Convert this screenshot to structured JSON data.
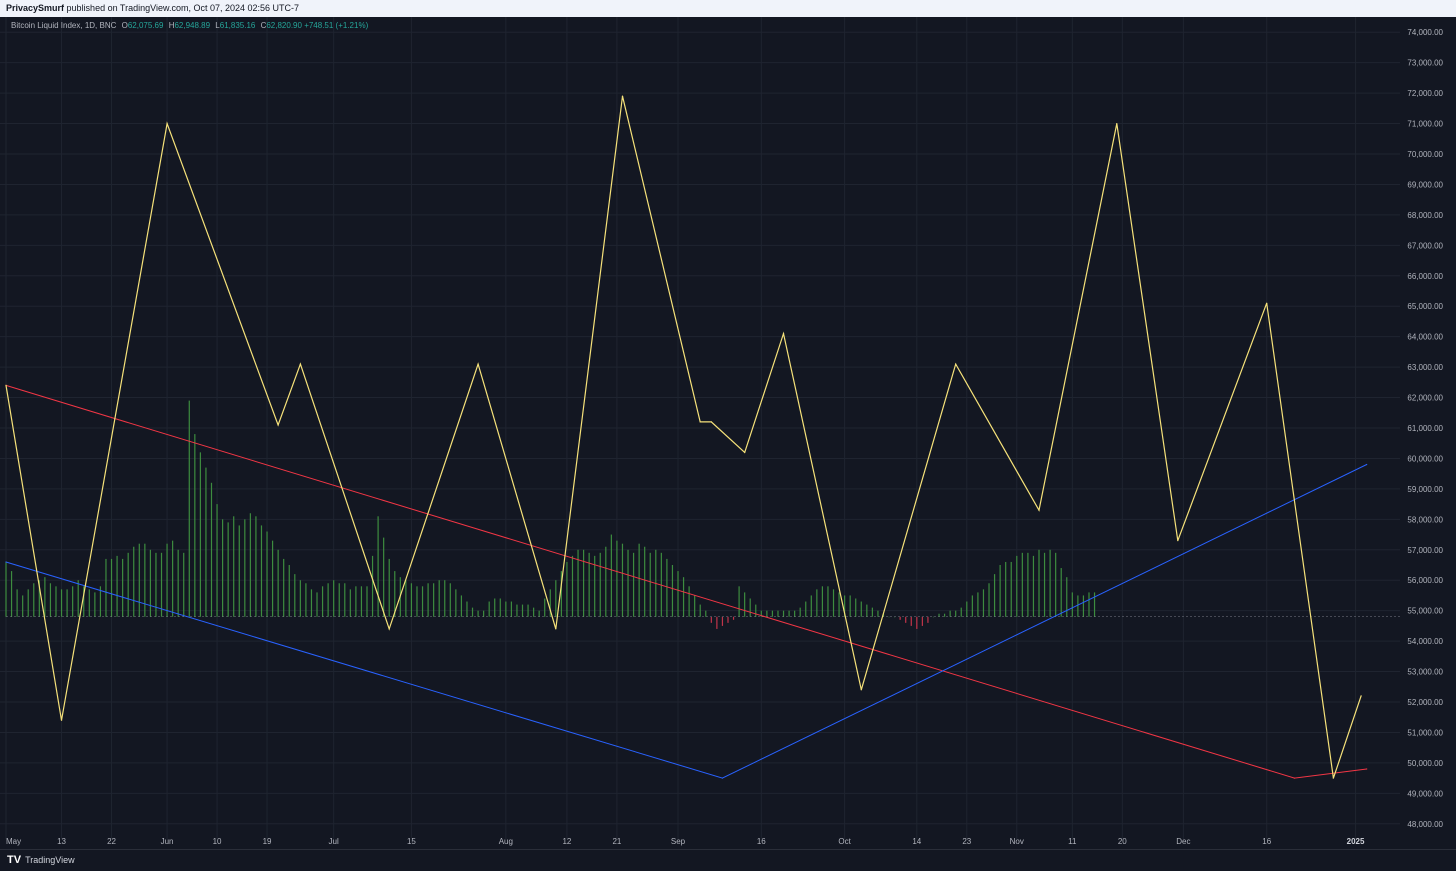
{
  "header": {
    "author": "PrivacySmurf",
    "published": "published on TradingView.com, Oct 07, 2024 02:56 UTC-7"
  },
  "legend": {
    "symbol": "Bitcoin Liquid Index, 1D, BNC",
    "open_label": "O",
    "open": "62,075.69",
    "high_label": "H",
    "high": "62,948.89",
    "low_label": "L",
    "low": "61,835.16",
    "close_label": "C",
    "close": "62,820.90",
    "change": "+748.51 (+1.21%)"
  },
  "footer": {
    "logo_mark": "TV",
    "brand": "TradingView"
  },
  "colors": {
    "background": "#131722",
    "grid": "#1f2430",
    "axis_text": "#b2b5be",
    "price_line": "#f6e27a",
    "red_trend": "#f23645",
    "blue_trend": "#2962ff",
    "hist_up": "#3d8c3f",
    "hist_down": "#c2344a"
  },
  "chart_data": {
    "type": "line",
    "y_axis_ticks": [
      "74,000.00",
      "73,000.00",
      "72,000.00",
      "71,000.00",
      "70,000.00",
      "69,000.00",
      "68,000.00",
      "67,000.00",
      "66,000.00",
      "65,000.00",
      "64,000.00",
      "63,000.00",
      "62,000.00",
      "61,000.00",
      "60,000.00",
      "59,000.00",
      "58,000.00",
      "57,000.00",
      "56,000.00",
      "55,000.00",
      "54,000.00",
      "53,000.00",
      "52,000.00",
      "51,000.00",
      "50,000.00",
      "49,000.00",
      "48,000.00"
    ],
    "ylim": [
      47500,
      74500
    ],
    "xlim": [
      "2024-05-03",
      "2025-01-09"
    ],
    "x_axis_ticks": [
      {
        "label": "May",
        "date": "2024-05-03"
      },
      {
        "label": "13",
        "date": "2024-05-13"
      },
      {
        "label": "22",
        "date": "2024-05-22"
      },
      {
        "label": "Jun",
        "date": "2024-06-01"
      },
      {
        "label": "10",
        "date": "2024-06-10"
      },
      {
        "label": "19",
        "date": "2024-06-19"
      },
      {
        "label": "Jul",
        "date": "2024-07-01"
      },
      {
        "label": "15",
        "date": "2024-07-15"
      },
      {
        "label": "Aug",
        "date": "2024-08-01"
      },
      {
        "label": "12",
        "date": "2024-08-12"
      },
      {
        "label": "21",
        "date": "2024-08-21"
      },
      {
        "label": "Sep",
        "date": "2024-09-01"
      },
      {
        "label": "16",
        "date": "2024-09-16"
      },
      {
        "label": "Oct",
        "date": "2024-10-01"
      },
      {
        "label": "14",
        "date": "2024-10-14"
      },
      {
        "label": "23",
        "date": "2024-10-23"
      },
      {
        "label": "Nov",
        "date": "2024-11-01"
      },
      {
        "label": "11",
        "date": "2024-11-11"
      },
      {
        "label": "20",
        "date": "2024-11-20"
      },
      {
        "label": "Dec",
        "date": "2024-12-01"
      },
      {
        "label": "16",
        "date": "2024-12-16"
      },
      {
        "label": "2025",
        "date": "2025-01-01"
      }
    ],
    "series": [
      {
        "id": "price-path",
        "color": "#f6e27a",
        "points": [
          {
            "x": "2024-05-03",
            "y": 62400
          },
          {
            "x": "2024-05-13",
            "y": 51400
          },
          {
            "x": "2024-06-01",
            "y": 71000
          },
          {
            "x": "2024-06-21",
            "y": 61100
          },
          {
            "x": "2024-06-25",
            "y": 63100
          },
          {
            "x": "2024-07-11",
            "y": 54400
          },
          {
            "x": "2024-07-27",
            "y": 63100
          },
          {
            "x": "2024-08-10",
            "y": 54400
          },
          {
            "x": "2024-08-22",
            "y": 71900
          },
          {
            "x": "2024-09-05",
            "y": 61200
          },
          {
            "x": "2024-09-07",
            "y": 61200
          },
          {
            "x": "2024-09-13",
            "y": 60200
          },
          {
            "x": "2024-09-20",
            "y": 64100
          },
          {
            "x": "2024-10-04",
            "y": 52400
          },
          {
            "x": "2024-10-21",
            "y": 63100
          },
          {
            "x": "2024-11-05",
            "y": 58300
          },
          {
            "x": "2024-11-19",
            "y": 71000
          },
          {
            "x": "2024-11-30",
            "y": 57300
          },
          {
            "x": "2024-12-16",
            "y": 65100
          },
          {
            "x": "2024-12-28",
            "y": 49500
          },
          {
            "x": "2025-01-02",
            "y": 52200
          }
        ]
      },
      {
        "id": "red-trend",
        "color": "#f23645",
        "points": [
          {
            "x": "2024-05-03",
            "y": 62400
          },
          {
            "x": "2024-12-21",
            "y": 49500
          },
          {
            "x": "2025-01-03",
            "y": 49800
          }
        ]
      },
      {
        "id": "blue-trend",
        "color": "#2962ff",
        "points": [
          {
            "x": "2024-05-03",
            "y": 56600
          },
          {
            "x": "2024-09-09",
            "y": 49500
          },
          {
            "x": "2025-01-03",
            "y": 59800
          }
        ]
      }
    ],
    "histogram": {
      "baseline": 54800,
      "start": "2024-05-03",
      "values": [
        56600,
        56300,
        55700,
        55500,
        55700,
        55900,
        56000,
        56100,
        55900,
        55800,
        55700,
        55700,
        55800,
        56000,
        55800,
        55700,
        55600,
        55800,
        56700,
        56700,
        56800,
        56700,
        56900,
        57100,
        57200,
        57200,
        57000,
        56900,
        56900,
        57200,
        57300,
        57000,
        56900,
        61900,
        60800,
        60200,
        59700,
        59200,
        58500,
        58000,
        57900,
        58100,
        57800,
        58000,
        58200,
        58100,
        57800,
        57600,
        57300,
        57000,
        56700,
        56500,
        56200,
        56000,
        55900,
        55700,
        55600,
        55800,
        55900,
        56000,
        55900,
        55900,
        55700,
        55800,
        55800,
        55800,
        56800,
        58100,
        57400,
        56700,
        56300,
        56100,
        56000,
        55900,
        55800,
        55800,
        55900,
        55900,
        56000,
        56000,
        55900,
        55700,
        55500,
        55300,
        55100,
        55000,
        55000,
        55300,
        55400,
        55400,
        55300,
        55300,
        55200,
        55200,
        55200,
        55100,
        55000,
        55400,
        55700,
        56000,
        56300,
        56600,
        56800,
        57000,
        57000,
        56900,
        56800,
        56900,
        57100,
        57500,
        57300,
        57200,
        57000,
        56900,
        57200,
        57100,
        56900,
        57000,
        56900,
        56700,
        56500,
        56300,
        56100,
        55800,
        55500,
        55200,
        55000,
        54600,
        54400,
        54500,
        54600,
        54700,
        55800,
        55600,
        55400,
        55200,
        55000,
        55000,
        55000,
        55000,
        55000,
        55000,
        55000,
        55100,
        55300,
        55500,
        55700,
        55800,
        55800,
        55700,
        55600,
        55500,
        55500,
        55400,
        55300,
        55200,
        55100,
        55000,
        54900,
        54800,
        54800,
        54700,
        54600,
        54500,
        54400,
        54500,
        54600,
        54800,
        54900,
        54900,
        55000,
        55000,
        55100,
        55300,
        55500,
        55600,
        55700,
        55900,
        56200,
        56500,
        56600,
        56600,
        56800,
        56900,
        56900,
        56800,
        57000,
        56900,
        57000,
        56900,
        56400,
        56100,
        55600,
        55500,
        55500,
        55600,
        55600
      ]
    }
  }
}
